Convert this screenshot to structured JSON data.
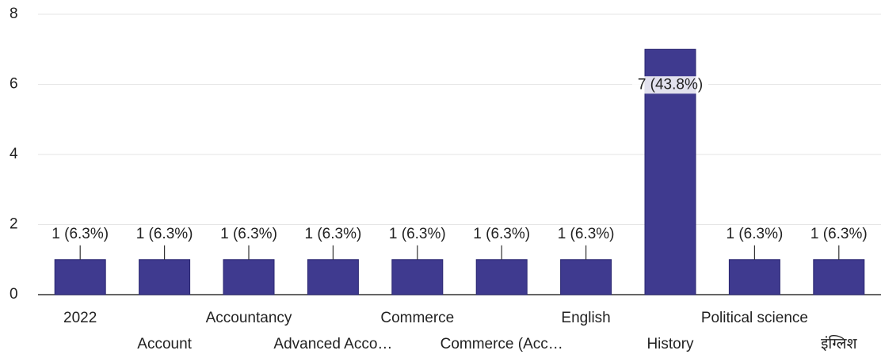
{
  "chart_data": {
    "type": "bar",
    "categories": [
      "2022",
      "Account",
      "Accountancy",
      "Advanced Acco…",
      "Commerce",
      "Commerce (Acc…",
      "English",
      "History",
      "Political science",
      "इंग्लिश"
    ],
    "values": [
      1,
      1,
      1,
      1,
      1,
      1,
      1,
      7,
      1,
      1
    ],
    "value_labels": [
      "1 (6.3%)",
      "1 (6.3%)",
      "1 (6.3%)",
      "1 (6.3%)",
      "1 (6.3%)",
      "1 (6.3%)",
      "1 (6.3%)",
      "7 (43.8%)",
      "1 (6.3%)",
      "1 (6.3%)"
    ],
    "color": "#3f3a8f",
    "ylim": [
      0,
      8
    ],
    "yticks": [
      0,
      2,
      4,
      6,
      8
    ],
    "grid": true
  }
}
